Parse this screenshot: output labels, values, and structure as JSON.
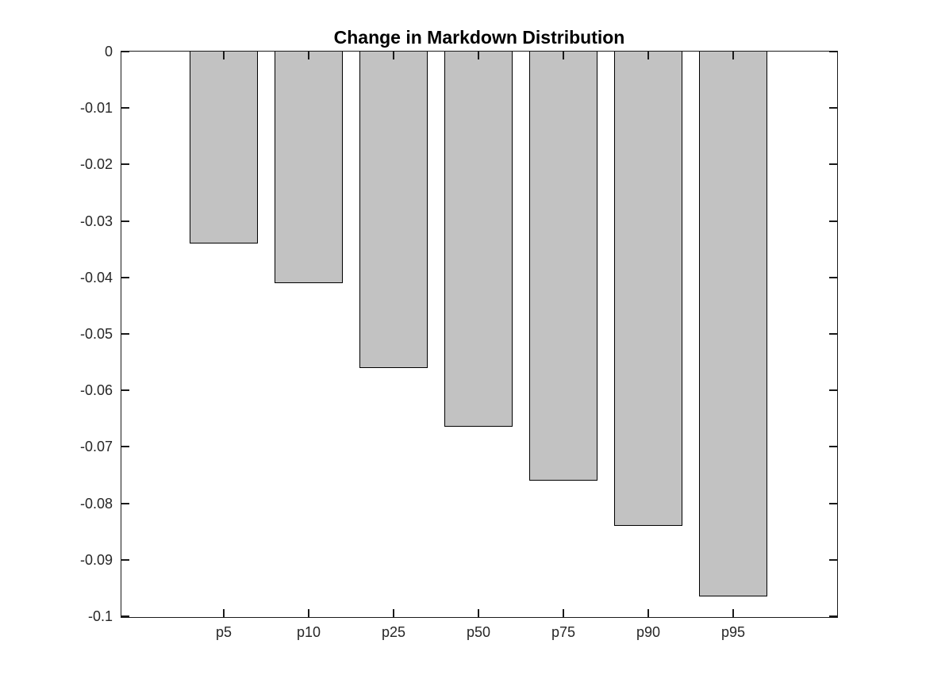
{
  "chart_data": {
    "type": "bar",
    "title": "Change in Markdown Distribution",
    "categories": [
      "p5",
      "p10",
      "p25",
      "p50",
      "p75",
      "p90",
      "p95"
    ],
    "values": [
      -0.034,
      -0.041,
      -0.056,
      -0.0665,
      -0.076,
      -0.084,
      -0.0965
    ],
    "xlabel": "",
    "ylabel": "",
    "ylim": [
      -0.1,
      0
    ],
    "ytick_step": 0.01,
    "ytick_values": [
      0,
      -0.01,
      -0.02,
      -0.03,
      -0.04,
      -0.05,
      -0.06,
      -0.07,
      -0.08,
      -0.09,
      -0.1
    ],
    "ytick_labels": [
      "0",
      "-0.01",
      "-0.02",
      "-0.03",
      "-0.04",
      "-0.05",
      "-0.06",
      "-0.07",
      "-0.08",
      "-0.09",
      "-0.1"
    ],
    "grid": false,
    "legend": null,
    "bar_color": "#c2c2c2",
    "bar_edge_color": "#000000",
    "axis_color": "#1a1a1a",
    "tick_label_color": "#262626",
    "background_color": "#ffffff"
  }
}
